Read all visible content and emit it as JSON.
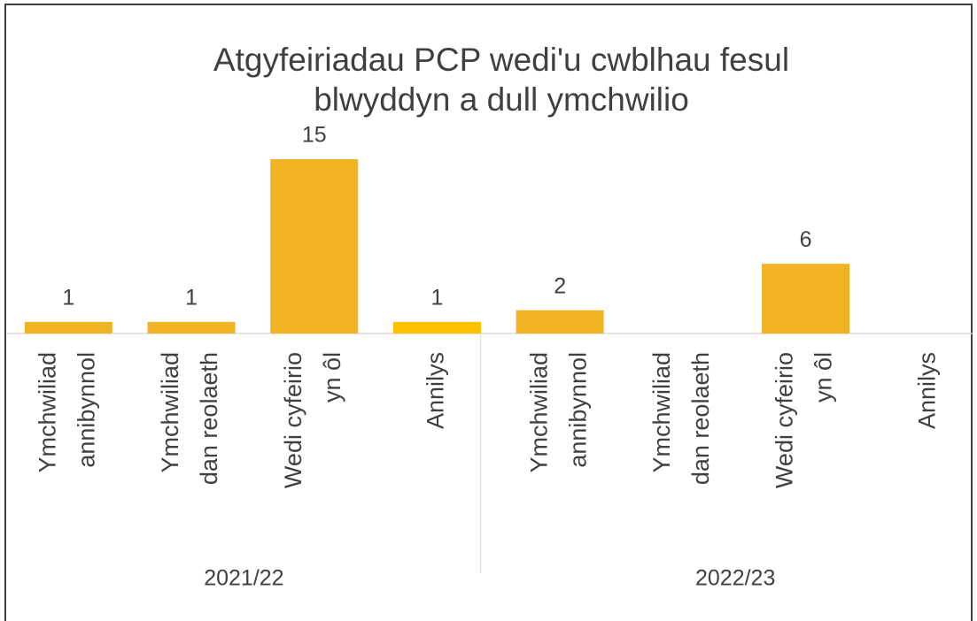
{
  "chart_data": {
    "type": "bar",
    "title": [
      "Atgyfeiriadau PCP wedi'u cwblhau fesul",
      "blwyddyn a dull ymchwilio"
    ],
    "groups": [
      "2021/22",
      "2022/23"
    ],
    "categories": [
      [
        "Ymchwiliad",
        "annibynnol"
      ],
      [
        "Ymchwiliad",
        "dan reolaeth"
      ],
      [
        "Wedi cyfeirio",
        "yn ôl"
      ],
      [
        "Annilys"
      ],
      [
        "Ymchwiliad",
        "annibynnol"
      ],
      [
        "Ymchwiliad",
        "dan reolaeth"
      ],
      [
        "Wedi cyfeirio",
        "yn ôl"
      ],
      [
        "Annilys"
      ]
    ],
    "values": [
      1,
      1,
      15,
      1,
      2,
      null,
      6,
      null
    ],
    "colors": [
      "#f0b323",
      "#f0b323",
      "#f0b323",
      "#ffc000",
      "#f0b323",
      "#f0b323",
      "#f0b323",
      "#f0b323"
    ]
  }
}
